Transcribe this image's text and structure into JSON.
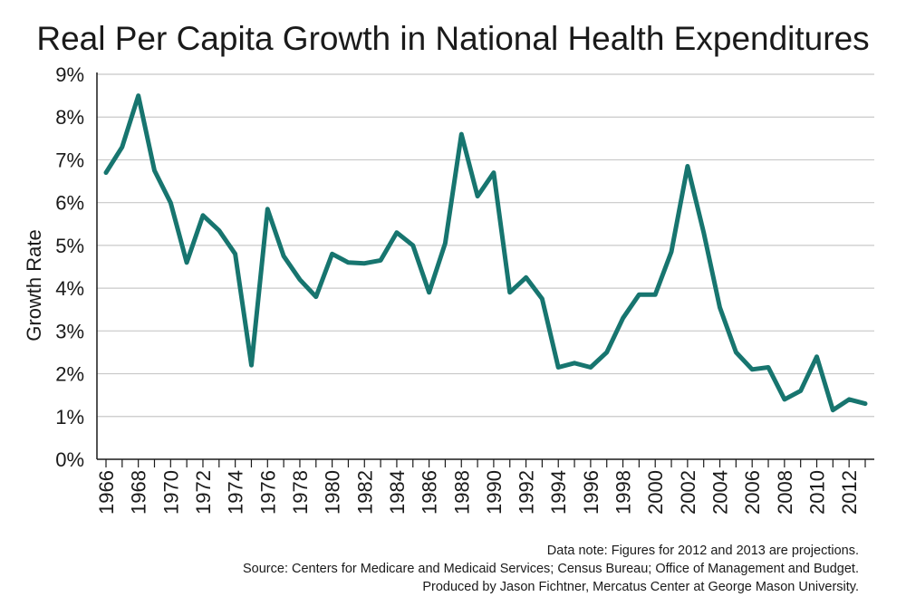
{
  "chart_data": {
    "type": "line",
    "title": "Real Per Capita Growth in National Health Expenditures",
    "xlabel": "",
    "ylabel": "Growth Rate",
    "ylim": [
      0,
      9
    ],
    "xlim": [
      1966,
      2013
    ],
    "y_ticks": [
      "0%",
      "1%",
      "2%",
      "3%",
      "4%",
      "5%",
      "6%",
      "7%",
      "8%",
      "9%"
    ],
    "x_ticks": [
      "1966",
      "1968",
      "1970",
      "1972",
      "1974",
      "1976",
      "1978",
      "1980",
      "1982",
      "1984",
      "1986",
      "1988",
      "1990",
      "1992",
      "1994",
      "1996",
      "1998",
      "2000",
      "2002",
      "2004",
      "2006",
      "2008",
      "2010",
      "2012"
    ],
    "grid": "horizontal",
    "line_color": "#17756f",
    "series": [
      {
        "x": [
          1966,
          1967,
          1968,
          1969,
          1970,
          1971,
          1972,
          1973,
          1974,
          1975,
          1976,
          1977,
          1978,
          1979,
          1980,
          1981,
          1982,
          1983,
          1984,
          1985,
          1986,
          1987,
          1988,
          1989,
          1990,
          1991,
          1992,
          1993,
          1994,
          1995,
          1996,
          1997,
          1998,
          1999,
          2000,
          2001,
          2002,
          2003,
          2004,
          2005,
          2006,
          2007,
          2008,
          2009,
          2010,
          2011,
          2012,
          2013
        ],
        "values": [
          6.7,
          7.3,
          8.5,
          6.75,
          6.0,
          4.6,
          5.7,
          5.35,
          4.8,
          2.2,
          5.85,
          4.75,
          4.2,
          3.8,
          4.8,
          4.6,
          4.58,
          4.65,
          5.3,
          5.0,
          3.9,
          5.05,
          7.6,
          6.15,
          6.7,
          3.9,
          4.25,
          3.75,
          2.15,
          2.25,
          2.15,
          2.5,
          3.3,
          3.85,
          3.85,
          4.85,
          6.85,
          5.3,
          3.55,
          2.5,
          2.1,
          2.15,
          1.4,
          1.6,
          2.4,
          1.15,
          1.4,
          1.3
        ]
      }
    ]
  },
  "footnotes": {
    "line1": "Data note: Figures for 2012 and 2013 are projections.",
    "line2": "Source: Centers for Medicare and Medicaid Services; Census Bureau; Office of Management and Budget.",
    "line3": "Produced by Jason Fichtner, Mercatus Center at George Mason University."
  }
}
